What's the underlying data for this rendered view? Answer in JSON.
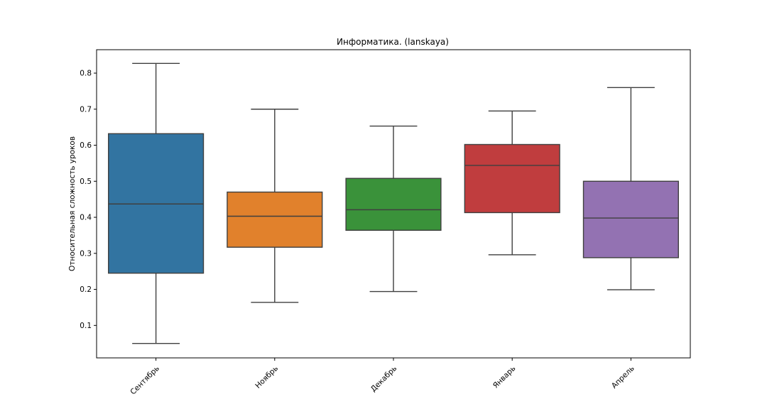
{
  "chart_data": {
    "type": "box",
    "title": "Информатика. (lanskaya)",
    "xlabel": "",
    "ylabel": "Относительная сложность уроков",
    "ylim": [
      0.01,
      0.865
    ],
    "yticks": [
      0.1,
      0.2,
      0.3,
      0.4,
      0.5,
      0.6,
      0.7,
      0.8
    ],
    "grid": false,
    "categories": [
      "Сентябрь",
      "Ноябрь",
      "Декабрь",
      "Январь",
      "Апрель"
    ],
    "boxes": [
      {
        "label": "Сентябрь",
        "min": 0.05,
        "q1": 0.245,
        "median": 0.437,
        "q3": 0.632,
        "max": 0.827,
        "color": "#3274a1"
      },
      {
        "label": "Ноябрь",
        "min": 0.164,
        "q1": 0.317,
        "median": 0.403,
        "q3": 0.47,
        "max": 0.7,
        "color": "#e1812c"
      },
      {
        "label": "Декабрь",
        "min": 0.194,
        "q1": 0.364,
        "median": 0.421,
        "q3": 0.508,
        "max": 0.653,
        "color": "#3a923a"
      },
      {
        "label": "Январь",
        "min": 0.296,
        "q1": 0.413,
        "median": 0.544,
        "q3": 0.602,
        "max": 0.695,
        "color": "#c03d3e"
      },
      {
        "label": "Апрель",
        "min": 0.199,
        "q1": 0.288,
        "median": 0.398,
        "q3": 0.5,
        "max": 0.76,
        "color": "#9372b2"
      }
    ]
  }
}
